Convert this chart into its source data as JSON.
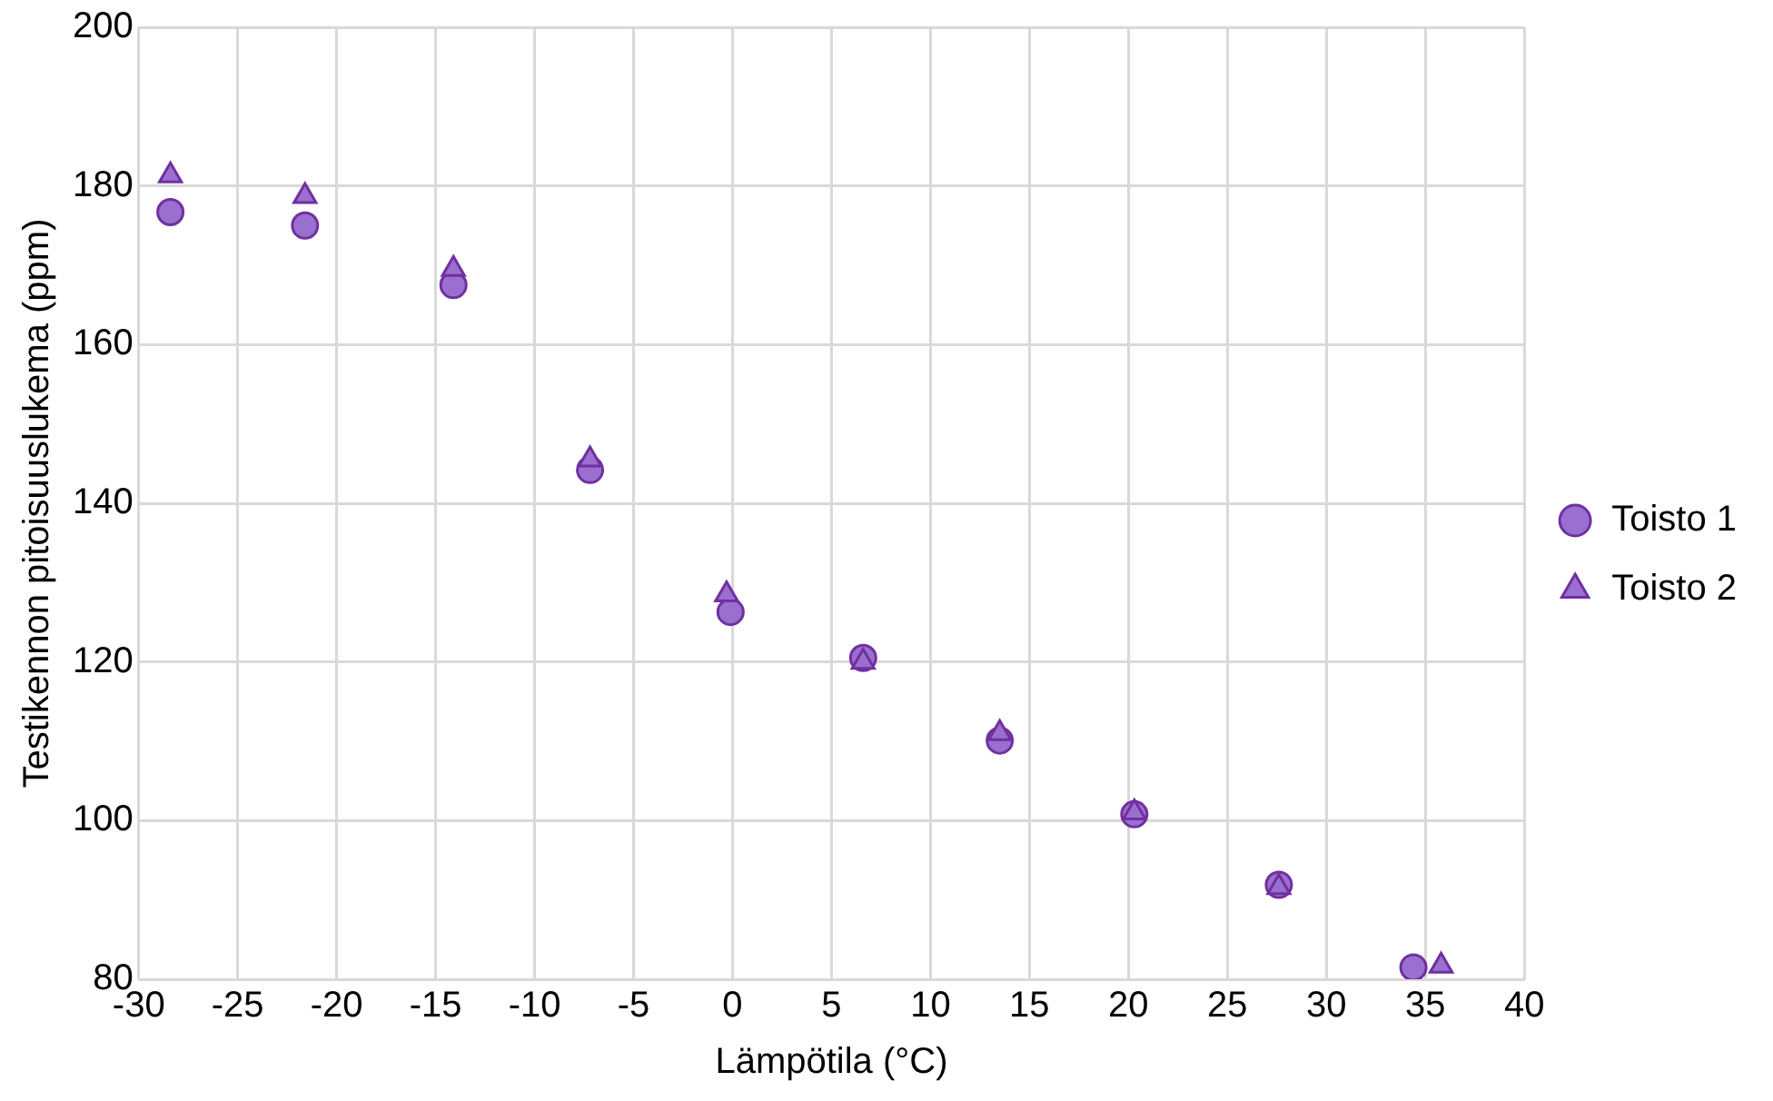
{
  "chart_data": {
    "type": "scatter",
    "xlabel": "Lämpötila (°C)",
    "ylabel": "Testikennon pitoisuuslukema (ppm)",
    "xlim": [
      -30,
      40
    ],
    "xticks": [
      -30,
      -25,
      -20,
      -15,
      -10,
      -5,
      0,
      5,
      10,
      15,
      20,
      25,
      30,
      35,
      40
    ],
    "ylim": [
      80,
      200
    ],
    "yticks": [
      80,
      100,
      120,
      140,
      160,
      180,
      200
    ],
    "grid": true,
    "legend": "right",
    "series": [
      {
        "name": "Toisto 1",
        "color": "#9b6fcf",
        "marker": "circle",
        "x": [
          -28.4,
          -21.6,
          -14.1,
          -7.2,
          -0.1,
          6.6,
          13.5,
          20.3,
          27.6,
          34.4
        ],
        "values": [
          176.7,
          175,
          167.5,
          144.2,
          126.3,
          120.5,
          110.1,
          100.8,
          91.9,
          81.5
        ]
      },
      {
        "name": "Toisto 2",
        "color": "#9b6fcf",
        "marker": "triangle",
        "x": [
          -28.4,
          -21.6,
          -14.1,
          -7.2,
          -0.3,
          6.6,
          13.5,
          20.3,
          27.6,
          35.8
        ],
        "values": [
          181.3,
          178.7,
          169.5,
          145.5,
          128.5,
          120,
          111,
          101,
          91.6,
          81.7
        ]
      }
    ]
  }
}
